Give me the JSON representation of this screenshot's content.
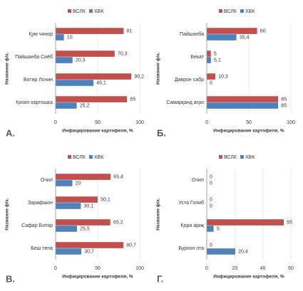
{
  "chart_data": [
    {
      "type": "hbar",
      "panel_label": "А.",
      "y_label": "Название ф/х.",
      "x_label": "Инфицирование картофеля, %",
      "categories": [
        "Қум чинор",
        "Пайшанба Сиёб",
        "Ботир Лочин",
        "Қизил картошка"
      ],
      "series": [
        {
          "name": "ВСЛК",
          "color": "#c0504d",
          "values": [
            81,
            70.3,
            90.2,
            85
          ],
          "value_labels": [
            "81",
            "70,3",
            "90,2",
            "85"
          ]
        },
        {
          "name": "ХВК",
          "color": "#4f81bd",
          "values": [
            10,
            20.3,
            45.1,
            25.2
          ],
          "value_labels": [
            "10",
            "20,3",
            "45,1",
            "25,2"
          ]
        }
      ],
      "xlim": [
        0,
        100
      ],
      "xticks": [
        0,
        50,
        100
      ]
    },
    {
      "type": "hbar",
      "panel_label": "Б.",
      "y_label": "Название ф/х.",
      "x_label": "Инфицирование картофеля, %",
      "categories": [
        "Пайшанба",
        "Бекат",
        "Даврон сабр",
        "Самарқанд агро"
      ],
      "series": [
        {
          "name": "ВСЛК",
          "color": "#c0504d",
          "values": [
            60,
            5,
            10.3,
            85
          ],
          "value_labels": [
            "60",
            "5",
            "10,3",
            "85"
          ]
        },
        {
          "name": "ХВК",
          "color": "#4f81bd",
          "values": [
            35.4,
            5.1,
            0,
            85
          ],
          "value_labels": [
            "35,4",
            "5,1",
            "0",
            "85"
          ]
        }
      ],
      "xlim": [
        0,
        100
      ],
      "xticks": [
        0,
        50,
        100
      ]
    },
    {
      "type": "hbar",
      "panel_label": "В.",
      "y_label": "Название ф/х.",
      "x_label": "Инфицирование картофеля, %",
      "categories": [
        "Очил",
        "Зарафшон",
        "Сафар Ботир",
        "Беш тепа"
      ],
      "series": [
        {
          "name": "ВСЛК",
          "color": "#c0504d",
          "values": [
            65.4,
            50.1,
            65.2,
            80.7
          ],
          "value_labels": [
            "65,4",
            "50,1",
            "65,2",
            "80,7"
          ]
        },
        {
          "name": "ХВК",
          "color": "#4f81bd",
          "values": [
            20,
            30.1,
            25.5,
            30.7
          ],
          "value_labels": [
            "20",
            "30,1",
            "25,5",
            "30,7"
          ]
        }
      ],
      "xlim": [
        0,
        100
      ],
      "xticks": [
        0,
        50,
        100
      ]
    },
    {
      "type": "hbar",
      "panel_label": "Г.",
      "y_label": "Название ф/х.",
      "x_label": "Инфицирование картофеля, %",
      "categories": [
        "Очил",
        "Уста Голиб",
        "Қора ариқ",
        "Бурхон ота"
      ],
      "series": [
        {
          "name": "ВСЛК",
          "color": "#c0504d",
          "values": [
            0,
            0,
            55,
            0
          ],
          "value_labels": [
            "0",
            "0",
            "55",
            "0"
          ]
        },
        {
          "name": "ХВК",
          "color": "#4f81bd",
          "values": [
            0,
            0,
            5,
            20.4
          ],
          "value_labels": [
            "0",
            "0",
            "5",
            "20,4"
          ]
        }
      ],
      "xlim": [
        0,
        60
      ],
      "xticks": [
        0,
        20,
        40,
        60
      ]
    }
  ]
}
